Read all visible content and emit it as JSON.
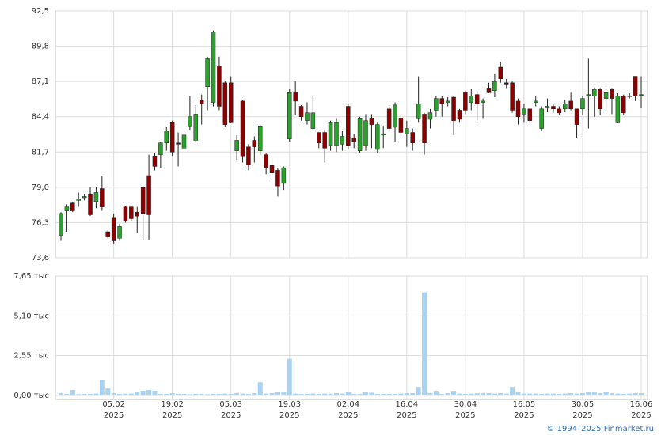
{
  "chart_data": [
    {
      "type": "candlestick",
      "up_color": "#2ca02c",
      "down_color": "#8b0000",
      "ylim": [
        73.6,
        92.5
      ],
      "yticks": [
        {
          "value": 73.6,
          "label": "73,6"
        },
        {
          "value": 76.3,
          "label": "76,3"
        },
        {
          "value": 79.0,
          "label": "79,0"
        },
        {
          "value": 81.7,
          "label": "81,7"
        },
        {
          "value": 84.4,
          "label": "84,4"
        },
        {
          "value": 87.1,
          "label": "87,1"
        },
        {
          "value": 89.8,
          "label": "89,8"
        },
        {
          "value": 92.5,
          "label": "92,5"
        }
      ],
      "grid": true,
      "open": [
        75.3,
        77.2,
        77.8,
        78.0,
        78.2,
        78.5,
        77.9,
        78.9,
        75.6,
        76.7,
        75.1,
        77.5,
        77.5,
        77.1,
        79.0,
        79.9,
        81.4,
        81.5,
        82.4,
        84.0,
        82.4,
        82.0,
        83.7,
        82.6,
        85.7,
        86.7,
        85.5,
        88.3,
        87.0,
        87.0,
        81.8,
        85.6,
        82.1,
        82.6,
        81.8,
        81.5,
        80.7,
        80.3,
        79.3,
        82.7,
        86.3,
        85.2,
        84.1,
        83.5,
        83.2,
        83.2,
        82.2,
        82.2,
        82.3,
        85.2,
        82.8,
        81.8,
        82.2,
        84.3,
        81.9,
        83.0,
        85.0,
        83.6,
        84.3,
        83.1,
        83.2,
        84.3,
        84.6,
        84.2,
        84.9,
        85.8,
        85.5,
        85.9,
        84.9,
        86.3,
        85.5,
        86.1,
        85.5,
        86.6,
        86.4,
        88.2,
        87.0,
        87.0,
        85.6,
        84.6,
        85.0,
        85.5,
        83.5,
        85.2,
        85.2,
        85.0,
        85.0,
        85.6,
        85.0,
        85.0,
        86.1,
        86.0,
        86.5,
        85.8,
        86.5,
        84.0,
        86.0,
        86.0,
        87.5,
        86.1
      ],
      "high": [
        77.1,
        77.7,
        77.9,
        78.6,
        78.5,
        79.0,
        79.0,
        79.9,
        75.7,
        77.0,
        76.2,
        77.6,
        77.6,
        77.5,
        79.1,
        81.5,
        81.6,
        82.5,
        83.6,
        84.1,
        83.2,
        83.3,
        86.0,
        85.3,
        86.1,
        89.0,
        91.0,
        89.0,
        87.1,
        87.5,
        83.0,
        85.7,
        82.3,
        82.9,
        83.8,
        81.6,
        81.3,
        80.5,
        80.6,
        86.5,
        87.1,
        85.3,
        85.5,
        86.0,
        83.2,
        83.4,
        84.1,
        84.3,
        83.3,
        85.4,
        83.1,
        84.4,
        84.6,
        84.6,
        84.0,
        83.7,
        85.3,
        85.5,
        84.6,
        84.1,
        83.5,
        87.5,
        84.7,
        85.0,
        86.0,
        86.0,
        85.9,
        86.0,
        85.0,
        86.4,
        86.5,
        86.3,
        85.8,
        87.0,
        87.7,
        88.6,
        87.3,
        87.1,
        85.8,
        85.4,
        85.1,
        86.0,
        85.2,
        85.8,
        85.4,
        85.2,
        85.7,
        86.3,
        85.0,
        86.0,
        88.9,
        86.6,
        86.6,
        86.6,
        86.6,
        86.2,
        86.1,
        86.2,
        87.5,
        87.5
      ],
      "low": [
        74.9,
        75.6,
        77.1,
        77.5,
        78.0,
        76.8,
        77.4,
        77.2,
        75.1,
        74.7,
        74.9,
        76.3,
        76.4,
        75.5,
        75.0,
        75.0,
        80.3,
        80.5,
        81.8,
        81.4,
        80.6,
        81.8,
        83.4,
        82.5,
        83.8,
        84.9,
        85.2,
        84.9,
        83.6,
        83.9,
        81.1,
        80.9,
        80.3,
        80.9,
        81.5,
        80.0,
        79.7,
        78.3,
        78.8,
        82.5,
        84.5,
        84.1,
        83.8,
        83.4,
        82.0,
        80.9,
        81.8,
        81.7,
        81.8,
        81.9,
        82.0,
        81.6,
        81.8,
        82.0,
        81.6,
        82.0,
        83.4,
        82.5,
        82.9,
        82.1,
        81.8,
        84.0,
        81.5,
        83.5,
        84.4,
        84.4,
        85.2,
        83.0,
        84.0,
        84.6,
        84.9,
        84.1,
        84.3,
        86.2,
        85.9,
        87.0,
        86.6,
        84.7,
        83.8,
        84.0,
        84.0,
        85.2,
        83.3,
        84.8,
        84.7,
        84.5,
        84.8,
        84.9,
        82.8,
        84.5,
        83.5,
        84.4,
        84.5,
        85.0,
        84.6,
        83.9,
        84.5,
        85.8,
        85.6,
        85.1
      ],
      "close": [
        77.0,
        77.5,
        77.2,
        78.1,
        78.3,
        76.9,
        78.6,
        77.5,
        75.2,
        74.9,
        76.0,
        76.4,
        76.6,
        76.8,
        77.0,
        76.9,
        80.6,
        82.4,
        83.3,
        81.7,
        82.3,
        83.0,
        84.4,
        84.6,
        85.4,
        88.9,
        90.9,
        85.2,
        83.8,
        84.0,
        82.6,
        81.4,
        80.7,
        82.1,
        83.7,
        80.5,
        80.1,
        79.1,
        80.5,
        86.3,
        85.6,
        84.4,
        84.7,
        84.7,
        82.4,
        82.0,
        84.0,
        84.0,
        82.9,
        82.2,
        82.5,
        84.3,
        84.1,
        83.8,
        83.8,
        83.1,
        83.5,
        85.3,
        83.2,
        83.5,
        82.4,
        85.4,
        82.4,
        84.7,
        85.8,
        85.4,
        85.6,
        84.1,
        84.2,
        84.9,
        86.0,
        85.4,
        85.6,
        86.3,
        87.1,
        87.3,
        86.9,
        84.9,
        84.4,
        85.0,
        84.1,
        85.6,
        85.0,
        85.2,
        85.0,
        84.7,
        85.4,
        85.0,
        83.8,
        85.8,
        86.1,
        86.5,
        85.0,
        86.3,
        85.8,
        86.0,
        84.7,
        86.0,
        86.0,
        86.1
      ]
    },
    {
      "type": "bar",
      "color": "#a9d3f2",
      "ylim": [
        0,
        7.65
      ],
      "yticks": [
        {
          "value": 0,
          "label": "0,00 тыс"
        },
        {
          "value": 2.55,
          "label": "2,55 тыс"
        },
        {
          "value": 5.1,
          "label": "5,10 тыс"
        },
        {
          "value": 7.65,
          "label": "7,65 тыс"
        }
      ],
      "grid": true,
      "categories": [
        null,
        null,
        null,
        null,
        null,
        null,
        null,
        null,
        null,
        [
          "05.02",
          "2025"
        ],
        null,
        null,
        null,
        null,
        null,
        null,
        null,
        null,
        null,
        [
          "19.02",
          "2025"
        ],
        null,
        null,
        null,
        null,
        null,
        null,
        null,
        null,
        null,
        [
          "05.03",
          "2025"
        ],
        null,
        null,
        null,
        null,
        null,
        null,
        null,
        null,
        null,
        [
          "19.03",
          "2025"
        ],
        null,
        null,
        null,
        null,
        null,
        null,
        null,
        null,
        null,
        [
          "02.04",
          "2025"
        ],
        null,
        null,
        null,
        null,
        null,
        null,
        null,
        null,
        null,
        [
          "16.04",
          "2025"
        ],
        null,
        null,
        null,
        null,
        null,
        null,
        null,
        null,
        null,
        [
          "30.04",
          "2025"
        ],
        null,
        null,
        null,
        null,
        null,
        null,
        null,
        null,
        null,
        [
          "16.05",
          "2025"
        ],
        null,
        null,
        null,
        null,
        null,
        null,
        null,
        null,
        null,
        [
          "30.05",
          "2025"
        ],
        null,
        null,
        null,
        null,
        null,
        null,
        null,
        null,
        null,
        [
          "16.06",
          "2025"
        ]
      ],
      "values": [
        0.15,
        0.1,
        0.35,
        0.08,
        0.1,
        0.1,
        0.12,
        1.0,
        0.45,
        0.15,
        0.1,
        0.12,
        0.12,
        0.2,
        0.3,
        0.35,
        0.3,
        0.1,
        0.1,
        0.15,
        0.1,
        0.1,
        0.08,
        0.1,
        0.1,
        0.08,
        0.1,
        0.1,
        0.12,
        0.1,
        0.15,
        0.12,
        0.1,
        0.15,
        0.85,
        0.12,
        0.15,
        0.2,
        0.2,
        2.35,
        0.12,
        0.1,
        0.1,
        0.12,
        0.1,
        0.12,
        0.12,
        0.15,
        0.12,
        0.2,
        0.1,
        0.1,
        0.2,
        0.18,
        0.1,
        0.1,
        0.1,
        0.1,
        0.12,
        0.15,
        0.15,
        0.55,
        6.6,
        0.15,
        0.25,
        0.1,
        0.15,
        0.25,
        0.12,
        0.1,
        0.12,
        0.15,
        0.15,
        0.15,
        0.12,
        0.15,
        0.12,
        0.55,
        0.2,
        0.12,
        0.12,
        0.12,
        0.1,
        0.12,
        0.12,
        0.1,
        0.12,
        0.15,
        0.12,
        0.15,
        0.2,
        0.2,
        0.15,
        0.2,
        0.15,
        0.12,
        0.1,
        0.12,
        0.15,
        0.15
      ]
    }
  ],
  "footer": "© 1994–2025 Finmarket.ru"
}
